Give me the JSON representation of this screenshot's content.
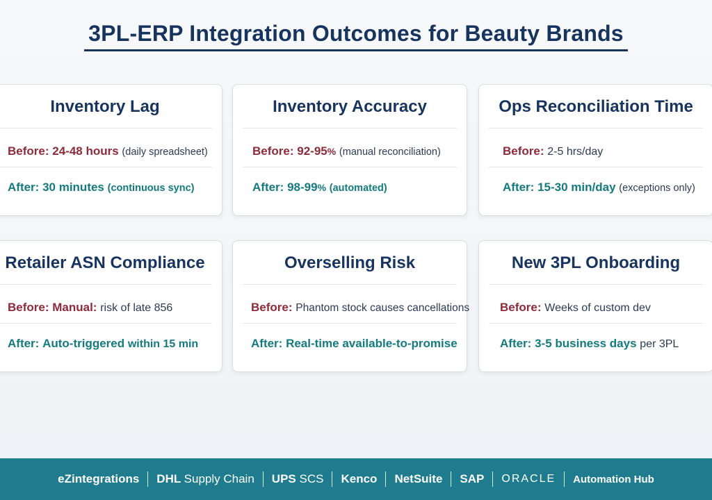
{
  "title": "3PL-ERP Integration Outcomes for Beauty Brands",
  "cards": [
    {
      "title": "Inventory Lag",
      "before": {
        "label": "Before:",
        "value": "24-48 hours",
        "note": "(daily spreadsheet)"
      },
      "after": {
        "label": "After:",
        "value": "30 minutes",
        "note": "(continuous sync)"
      }
    },
    {
      "title": "Inventory Accuracy",
      "before": {
        "label": "Before:",
        "value": "92-95",
        "unit": "%",
        "note": "(manual reconciliation)"
      },
      "after": {
        "label": "After:",
        "value": "98-99",
        "unit": "%",
        "note": "(automated)"
      }
    },
    {
      "title": "Ops Reconciliation Time",
      "before": {
        "label": "Before:",
        "note": "2-5 hrs/day"
      },
      "after": {
        "label": "After:",
        "value": "15-30 min/day",
        "note": "(exceptions only)"
      }
    },
    {
      "title": "Retailer ASN Compliance",
      "before": {
        "label": "Before:",
        "value": "Manual:",
        "note": "risk of late 856"
      },
      "after": {
        "label": "After:",
        "value": "Auto-triggered",
        "note": "within 15 min"
      }
    },
    {
      "title": "Overselling Risk",
      "before": {
        "label": "Before:",
        "note": "Phantom stock causes cancellations"
      },
      "after": {
        "label": "After:",
        "value": "Real-time available-to-promise"
      }
    },
    {
      "title": "New 3PL Onboarding",
      "before": {
        "label": "Before:",
        "note": "Weeks of custom dev"
      },
      "after": {
        "label": "After:",
        "value": "3-5 business days",
        "note": "per 3PL"
      }
    }
  ],
  "footer": {
    "partners": [
      {
        "bold": "eZintegrations",
        "light": ""
      },
      {
        "bold": "DHL",
        "light": "Supply Chain"
      },
      {
        "bold": "UPS",
        "light": "SCS"
      },
      {
        "bold": "Kenco",
        "light": ""
      },
      {
        "bold": "NetSuite",
        "light": ""
      },
      {
        "bold": "SAP",
        "light": ""
      },
      {
        "bold": "ORACLE",
        "light": ""
      },
      {
        "bold": "Automation Hub",
        "light": ""
      }
    ]
  },
  "colors": {
    "title": "#17345e",
    "before": "#8e2b3a",
    "after": "#137a80",
    "footer_bg": "#1f7b8e"
  }
}
